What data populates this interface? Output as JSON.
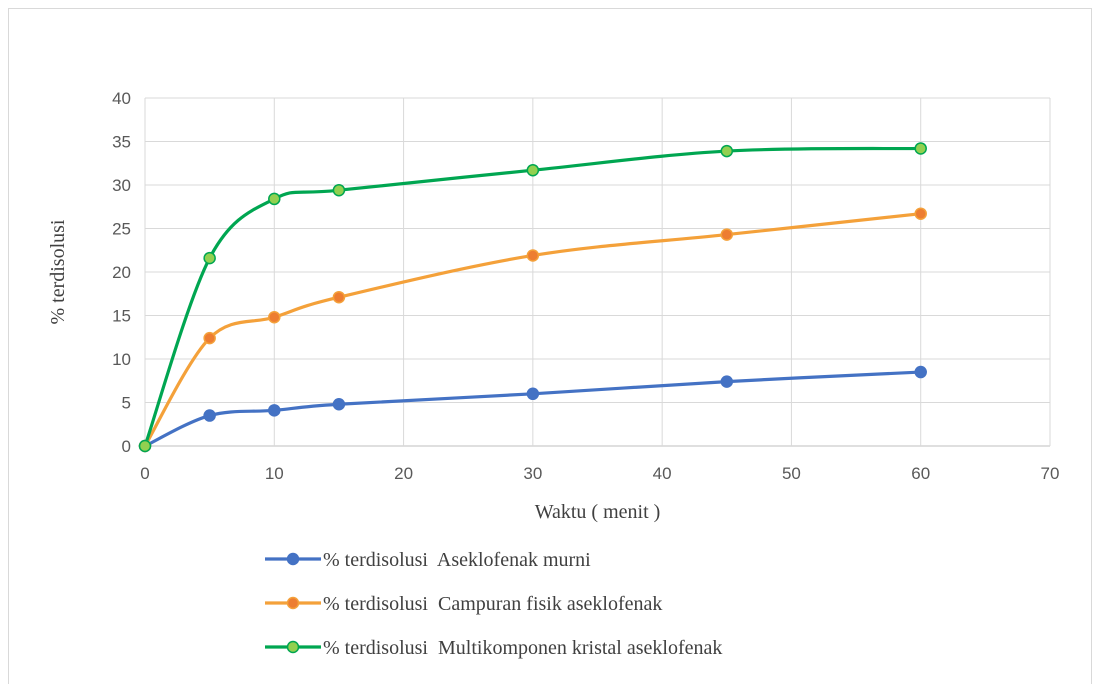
{
  "chart_data": {
    "type": "line",
    "smooth": true,
    "xlabel": "Waktu ( menit )",
    "ylabel": "% terdisolusi",
    "xlim": [
      0,
      70
    ],
    "ylim": [
      0,
      40
    ],
    "x_ticks": [
      0,
      10,
      20,
      30,
      40,
      50,
      60,
      70
    ],
    "y_ticks": [
      0,
      5,
      10,
      15,
      20,
      25,
      30,
      35,
      40
    ],
    "grid": true,
    "legend_position": "bottom",
    "x": [
      0,
      5,
      10,
      15,
      30,
      45,
      60
    ],
    "series": [
      {
        "name": "% terdisolusi  Aseklofenak murni",
        "values": [
          0,
          3.5,
          4.1,
          4.8,
          6.0,
          7.4,
          8.5
        ],
        "color": "#4472c4",
        "marker_fill": "#4472c4"
      },
      {
        "name": "% terdisolusi  Campuran fisik aseklofenak",
        "values": [
          0,
          12.4,
          14.8,
          17.1,
          21.9,
          24.3,
          26.7
        ],
        "color": "#f4a13a",
        "marker_fill": "#ed7d31"
      },
      {
        "name": "% terdisolusi  Multikomponen kristal aseklofenak",
        "values": [
          0,
          21.6,
          28.4,
          29.4,
          31.7,
          33.9,
          34.2
        ],
        "color": "#00a651",
        "marker_fill": "#92d050"
      }
    ]
  }
}
